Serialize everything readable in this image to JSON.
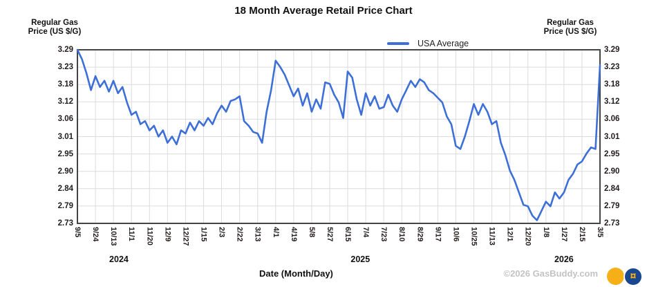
{
  "header": {
    "title": "18 Month Average Retail Price Chart"
  },
  "axis_unit": {
    "line1": "Regular Gas",
    "line2": "Price (US $/G)"
  },
  "legend": {
    "label": "USA Average"
  },
  "footer": {
    "xlabel": "Date (Month/Day)",
    "copyright": "©2026 GasBuddy.com",
    "logo_glyph": "¤"
  },
  "colors": {
    "line": "#3d6fd8",
    "grid": "#dcdcdc",
    "plot_border": "#444444",
    "tick_text": "#221c1c",
    "copyright_text": "#c3c3c3",
    "logo_yellow": "#f6af17",
    "logo_blue": "#1b4790"
  },
  "chart_data": {
    "type": "line",
    "title": "18 Month Average Retail Price Chart",
    "xlabel": "Date (Month/Day)",
    "ylabel": "Regular Gas Price (US $/G)",
    "legend_position": "top-center",
    "grid": true,
    "ylim": [
      2.73,
      3.29
    ],
    "y_ticks": [
      "3.29",
      "3.23",
      "3.18",
      "3.12",
      "3.06",
      "3.01",
      "2.95",
      "2.90",
      "2.84",
      "2.79",
      "2.73"
    ],
    "x_ticks": [
      "9/5",
      "9/24",
      "10/13",
      "11/1",
      "11/20",
      "12/9",
      "12/27",
      "1/15",
      "2/3",
      "2/22",
      "3/13",
      "4/1",
      "4/19",
      "5/8",
      "5/27",
      "6/15",
      "7/4",
      "7/23",
      "8/10",
      "8/29",
      "9/17",
      "10/6",
      "10/25",
      "11/13",
      "12/1",
      "12/20",
      "1/8",
      "1/27",
      "2/15",
      "3/5"
    ],
    "x_tick_years": [
      {
        "label": "2024",
        "pos": 2.3
      },
      {
        "label": "2025",
        "pos": 15.7
      },
      {
        "label": "2026",
        "pos": 27.0
      }
    ],
    "points_per_tick_interval": 4,
    "series": [
      {
        "name": "USA Average",
        "values": [
          3.29,
          3.26,
          3.215,
          3.16,
          3.205,
          3.17,
          3.19,
          3.155,
          3.19,
          3.15,
          3.17,
          3.12,
          3.08,
          3.09,
          3.05,
          3.06,
          3.03,
          3.045,
          3.01,
          3.03,
          2.99,
          3.01,
          2.985,
          3.03,
          3.02,
          3.055,
          3.03,
          3.06,
          3.045,
          3.07,
          3.05,
          3.085,
          3.11,
          3.09,
          3.125,
          3.13,
          3.14,
          3.06,
          3.045,
          3.025,
          3.02,
          2.99,
          3.09,
          3.16,
          3.255,
          3.235,
          3.21,
          3.175,
          3.14,
          3.165,
          3.11,
          3.15,
          3.09,
          3.13,
          3.1,
          3.185,
          3.18,
          3.145,
          3.12,
          3.07,
          3.22,
          3.2,
          3.13,
          3.08,
          3.15,
          3.11,
          3.14,
          3.1,
          3.105,
          3.145,
          3.11,
          3.09,
          3.13,
          3.16,
          3.19,
          3.17,
          3.195,
          3.185,
          3.16,
          3.15,
          3.135,
          3.12,
          3.075,
          3.05,
          2.98,
          2.97,
          3.01,
          3.06,
          3.115,
          3.08,
          3.115,
          3.09,
          3.05,
          3.06,
          2.99,
          2.95,
          2.9,
          2.87,
          2.83,
          2.79,
          2.785,
          2.755,
          2.74,
          2.77,
          2.8,
          2.785,
          2.83,
          2.81,
          2.83,
          2.87,
          2.89,
          2.92,
          2.93,
          2.955,
          2.975,
          2.97,
          3.24
        ]
      }
    ]
  }
}
